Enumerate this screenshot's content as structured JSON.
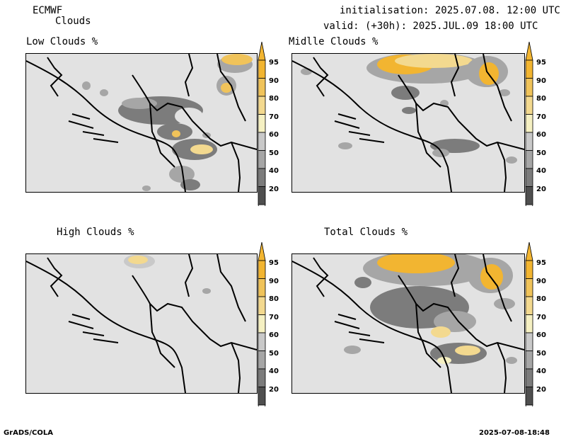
{
  "header": {
    "model": "ECMWF",
    "product": "Clouds",
    "initialisation": "initialisation: 2025.07.08. 12:00 UTC",
    "valid": "valid: (+30h): 2025.JUL.09 18:00 UTC"
  },
  "panels": [
    {
      "title": "Low Clouds %"
    },
    {
      "title": "Midlle Clouds %"
    },
    {
      "title": "High Clouds %"
    },
    {
      "title": "Total Clouds %"
    }
  ],
  "colorbar": {
    "levels": [
      "95",
      "90",
      "80",
      "70",
      "60",
      "50",
      "40",
      "20"
    ],
    "colors": [
      "#f2b531",
      "#f0c35a",
      "#f3d98f",
      "#f5f0c2",
      "#c9c9c9",
      "#a6a6a6",
      "#7c7c7c",
      "#4f4f4f"
    ]
  },
  "footer": {
    "left": "GrADS/COLA",
    "right": "2025-07-08-18:48"
  }
}
